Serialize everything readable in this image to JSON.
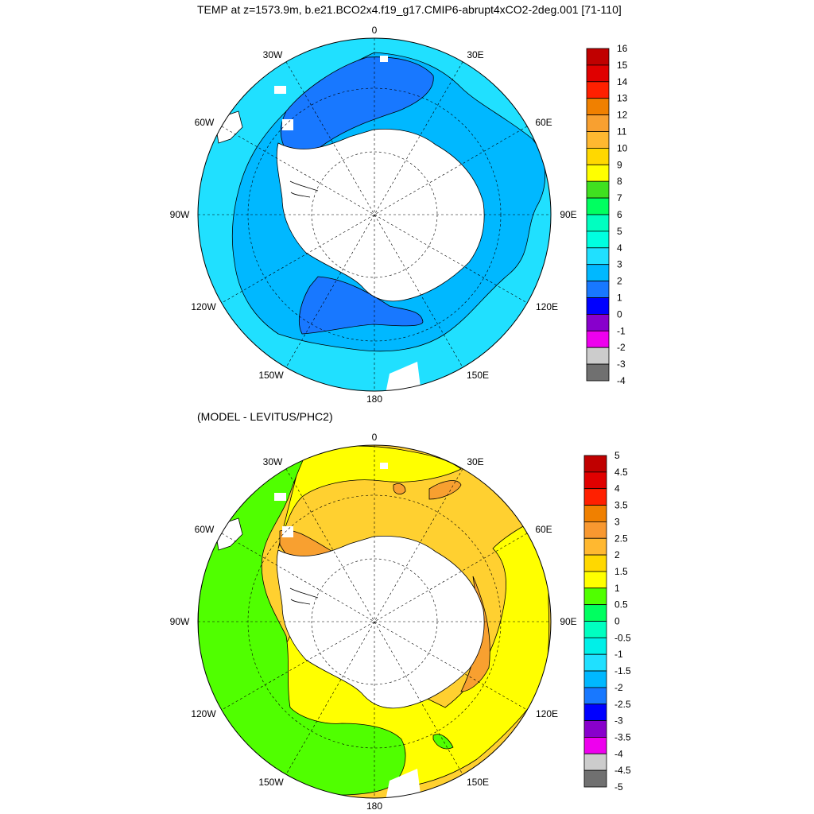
{
  "titles": {
    "top": "TEMP at z=1573.9m, b.e21.BCO2x4.f19_g17.CMIP6-abrupt4xCO2-2deg.001 [71-110]",
    "bottom": "(MODEL - LEVITUS/PHC2)"
  },
  "lon_labels": {
    "top": "0",
    "e30": "30E",
    "e60": "60E",
    "e90": "90E",
    "e120": "120E",
    "e150": "150E",
    "bottom": "180",
    "w150": "150W",
    "w120": "120W",
    "w90": "90W",
    "w60": "60W",
    "w30": "30W"
  },
  "colorbar_top": {
    "labels": [
      "16",
      "15",
      "14",
      "13",
      "12",
      "11",
      "10",
      "9",
      "8",
      "7",
      "6",
      "5",
      "4",
      "3",
      "2",
      "1",
      "0",
      "-1",
      "-2",
      "-3",
      "-4"
    ],
    "colors": [
      "#c00000",
      "#e00000",
      "#ff2000",
      "#f08000",
      "#f8a030",
      "#ffb830",
      "#ffd800",
      "#ffff00",
      "#40e020",
      "#00ff60",
      "#00ffc0",
      "#00ffe0",
      "#20e0ff",
      "#00b8ff",
      "#1878ff",
      "#0000ff",
      "#8800cc",
      "#ee00ee",
      "#cccccc",
      "#707070"
    ]
  },
  "colorbar_bottom": {
    "labels": [
      "5",
      "4.5",
      "4",
      "3.5",
      "3",
      "2.5",
      "2",
      "1.5",
      "1",
      "0.5",
      "0",
      "-0.5",
      "-1",
      "-1.5",
      "-2",
      "-2.5",
      "-3",
      "-3.5",
      "-4",
      "-4.5",
      "-5"
    ],
    "colors": [
      "#c00000",
      "#e00000",
      "#ff2000",
      "#f08000",
      "#f89830",
      "#ffb830",
      "#ffd800",
      "#ffff00",
      "#50ff00",
      "#00ff60",
      "#00ffc0",
      "#00f0e8",
      "#20e0ff",
      "#00b8ff",
      "#1878ff",
      "#0000ff",
      "#8800cc",
      "#ee00ee",
      "#cccccc",
      "#707070"
    ]
  },
  "fill_colors": {
    "outer_top": "#20e0ff",
    "mid_top": "#00b8ff",
    "cold_top": "#1878ff",
    "land": "#ffffff",
    "outer_bottom_green": "#50ff00",
    "mid_bottom_yellow": "#ffff00",
    "warm_bottom": "#ffd030",
    "hot_bottom": "#f8a030"
  }
}
